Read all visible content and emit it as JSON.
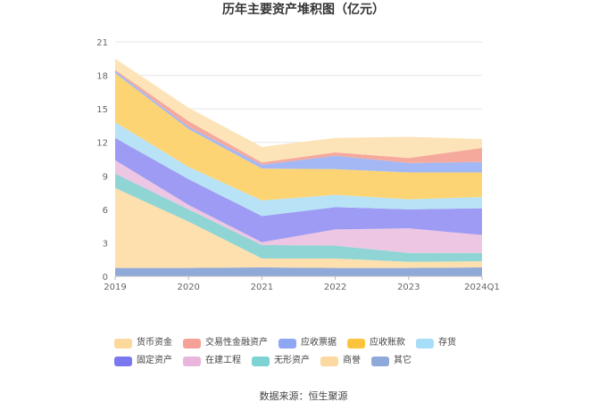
{
  "chart_data": {
    "type": "area",
    "stacked": true,
    "title": "历年主要资产堆积图（亿元）",
    "categories": [
      "2019",
      "2020",
      "2021",
      "2022",
      "2023",
      "2024Q1"
    ],
    "y_ticks": [
      "0",
      "3",
      "6",
      "9",
      "12",
      "15",
      "18",
      "21"
    ],
    "ylim": [
      0,
      21
    ],
    "grid": true,
    "legend_position": "bottom",
    "series": [
      {
        "name": "其它",
        "color": "#8fa9d8",
        "values": [
          0.75,
          0.75,
          0.8,
          0.75,
          0.75,
          0.8
        ]
      },
      {
        "name": "商誉",
        "color": "#fde0ad",
        "values": [
          7.15,
          4.15,
          0.8,
          0.85,
          0.55,
          0.55
        ]
      },
      {
        "name": "无形资产",
        "color": "#8fd5d5",
        "values": [
          1.3,
          1.1,
          1.2,
          1.15,
          0.8,
          0.75
        ]
      },
      {
        "name": "在建工程",
        "color": "#ecc6e3",
        "values": [
          1.2,
          0.4,
          0.25,
          1.45,
          2.2,
          1.6
        ]
      },
      {
        "name": "固定资产",
        "color": "#9e9bf4",
        "values": [
          2.0,
          2.3,
          2.35,
          2.0,
          1.7,
          2.4
        ]
      },
      {
        "name": "存货",
        "color": "#b8e3f6",
        "values": [
          1.4,
          1.1,
          1.4,
          1.1,
          0.9,
          1.0
        ]
      },
      {
        "name": "应收账款",
        "color": "#fdd474",
        "values": [
          4.4,
          3.4,
          2.85,
          2.3,
          2.4,
          2.2
        ]
      },
      {
        "name": "应收票据",
        "color": "#a3b8f4",
        "values": [
          0.2,
          0.2,
          0.35,
          1.2,
          0.85,
          0.95
        ]
      },
      {
        "name": "交易性金融资产",
        "color": "#f5a99d",
        "values": [
          0.1,
          0.5,
          0.2,
          0.3,
          0.45,
          1.25
        ]
      },
      {
        "name": "货币资金",
        "color": "#fde3b8",
        "values": [
          1.0,
          1.2,
          1.4,
          1.3,
          1.9,
          0.8
        ]
      }
    ],
    "legend": [
      {
        "name": "货币资金",
        "color": "#fdd89d"
      },
      {
        "name": "交易性金融资产",
        "color": "#f5a197"
      },
      {
        "name": "应收票据",
        "color": "#8fa6f4"
      },
      {
        "name": "应收账款",
        "color": "#fcc43c"
      },
      {
        "name": "存货",
        "color": "#a6def7"
      },
      {
        "name": "固定资产",
        "color": "#7b77ef"
      },
      {
        "name": "在建工程",
        "color": "#e8b5dd"
      },
      {
        "name": "无形资产",
        "color": "#7dd2d2"
      },
      {
        "name": "商誉",
        "color": "#fcd9a0"
      },
      {
        "name": "其它",
        "color": "#8fa9d8"
      }
    ]
  },
  "source": "数据来源：恒生聚源"
}
